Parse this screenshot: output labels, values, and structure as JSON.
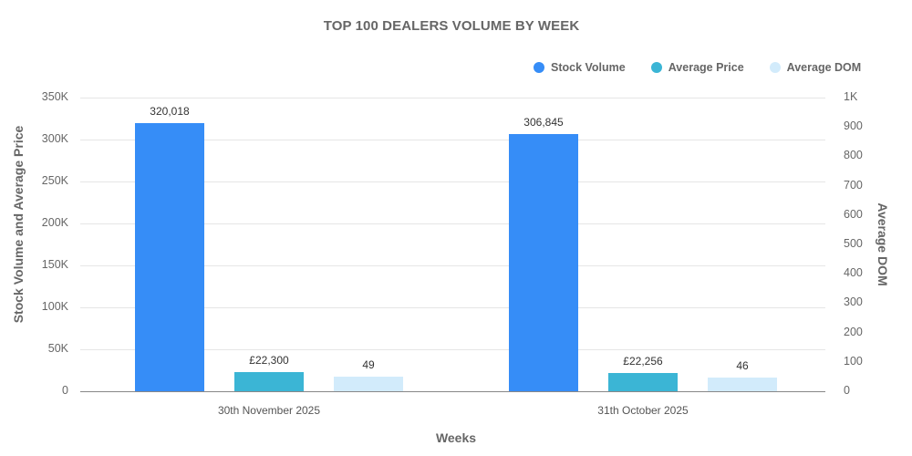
{
  "title": "TOP 100 DEALERS VOLUME BY WEEK",
  "legend": [
    {
      "label": "Stock Volume",
      "color": "#368DF7"
    },
    {
      "label": "Average Price",
      "color": "#3BB5D5"
    },
    {
      "label": "Average DOM",
      "color": "#D2EBFB"
    }
  ],
  "axes": {
    "y_left_label": "Stock Volume and Average Price",
    "y_right_label": "Average DOM",
    "x_label": "Weeks",
    "y_left_ticks": [
      "0",
      "50K",
      "100K",
      "150K",
      "200K",
      "250K",
      "300K",
      "350K"
    ],
    "y_right_ticks": [
      "0",
      "100",
      "200",
      "300",
      "400",
      "500",
      "600",
      "700",
      "800",
      "900",
      "1K"
    ]
  },
  "categories": [
    "30th November 2025",
    "31th October 2025"
  ],
  "bar_labels": {
    "stock_volume": [
      "320,018",
      "306,845"
    ],
    "average_price": [
      "£22,300",
      "£22,256"
    ],
    "average_dom": [
      "49",
      "46"
    ]
  },
  "chart_data": {
    "type": "bar",
    "title": "TOP 100 DEALERS VOLUME BY WEEK",
    "xlabel": "Weeks",
    "ylabel": "Stock Volume and Average Price",
    "ylabel_secondary": "Average DOM",
    "categories": [
      "30th November 2025",
      "31th October 2025"
    ],
    "series": [
      {
        "name": "Stock Volume",
        "axis": "left",
        "color": "#368DF7",
        "values": [
          320018,
          306845
        ]
      },
      {
        "name": "Average Price",
        "axis": "left",
        "color": "#3BB5D5",
        "values": [
          22300,
          22256
        ]
      },
      {
        "name": "Average DOM",
        "axis": "right",
        "color": "#D2EBFB",
        "values": [
          49,
          46
        ]
      }
    ],
    "ylim": [
      0,
      350000
    ],
    "ylim_secondary": [
      0,
      1000
    ],
    "y_ticks": [
      0,
      50000,
      100000,
      150000,
      200000,
      250000,
      300000,
      350000
    ],
    "y_ticks_secondary": [
      0,
      100,
      200,
      300,
      400,
      500,
      600,
      700,
      800,
      900,
      1000
    ],
    "grid": true,
    "legend_position": "top-right"
  }
}
